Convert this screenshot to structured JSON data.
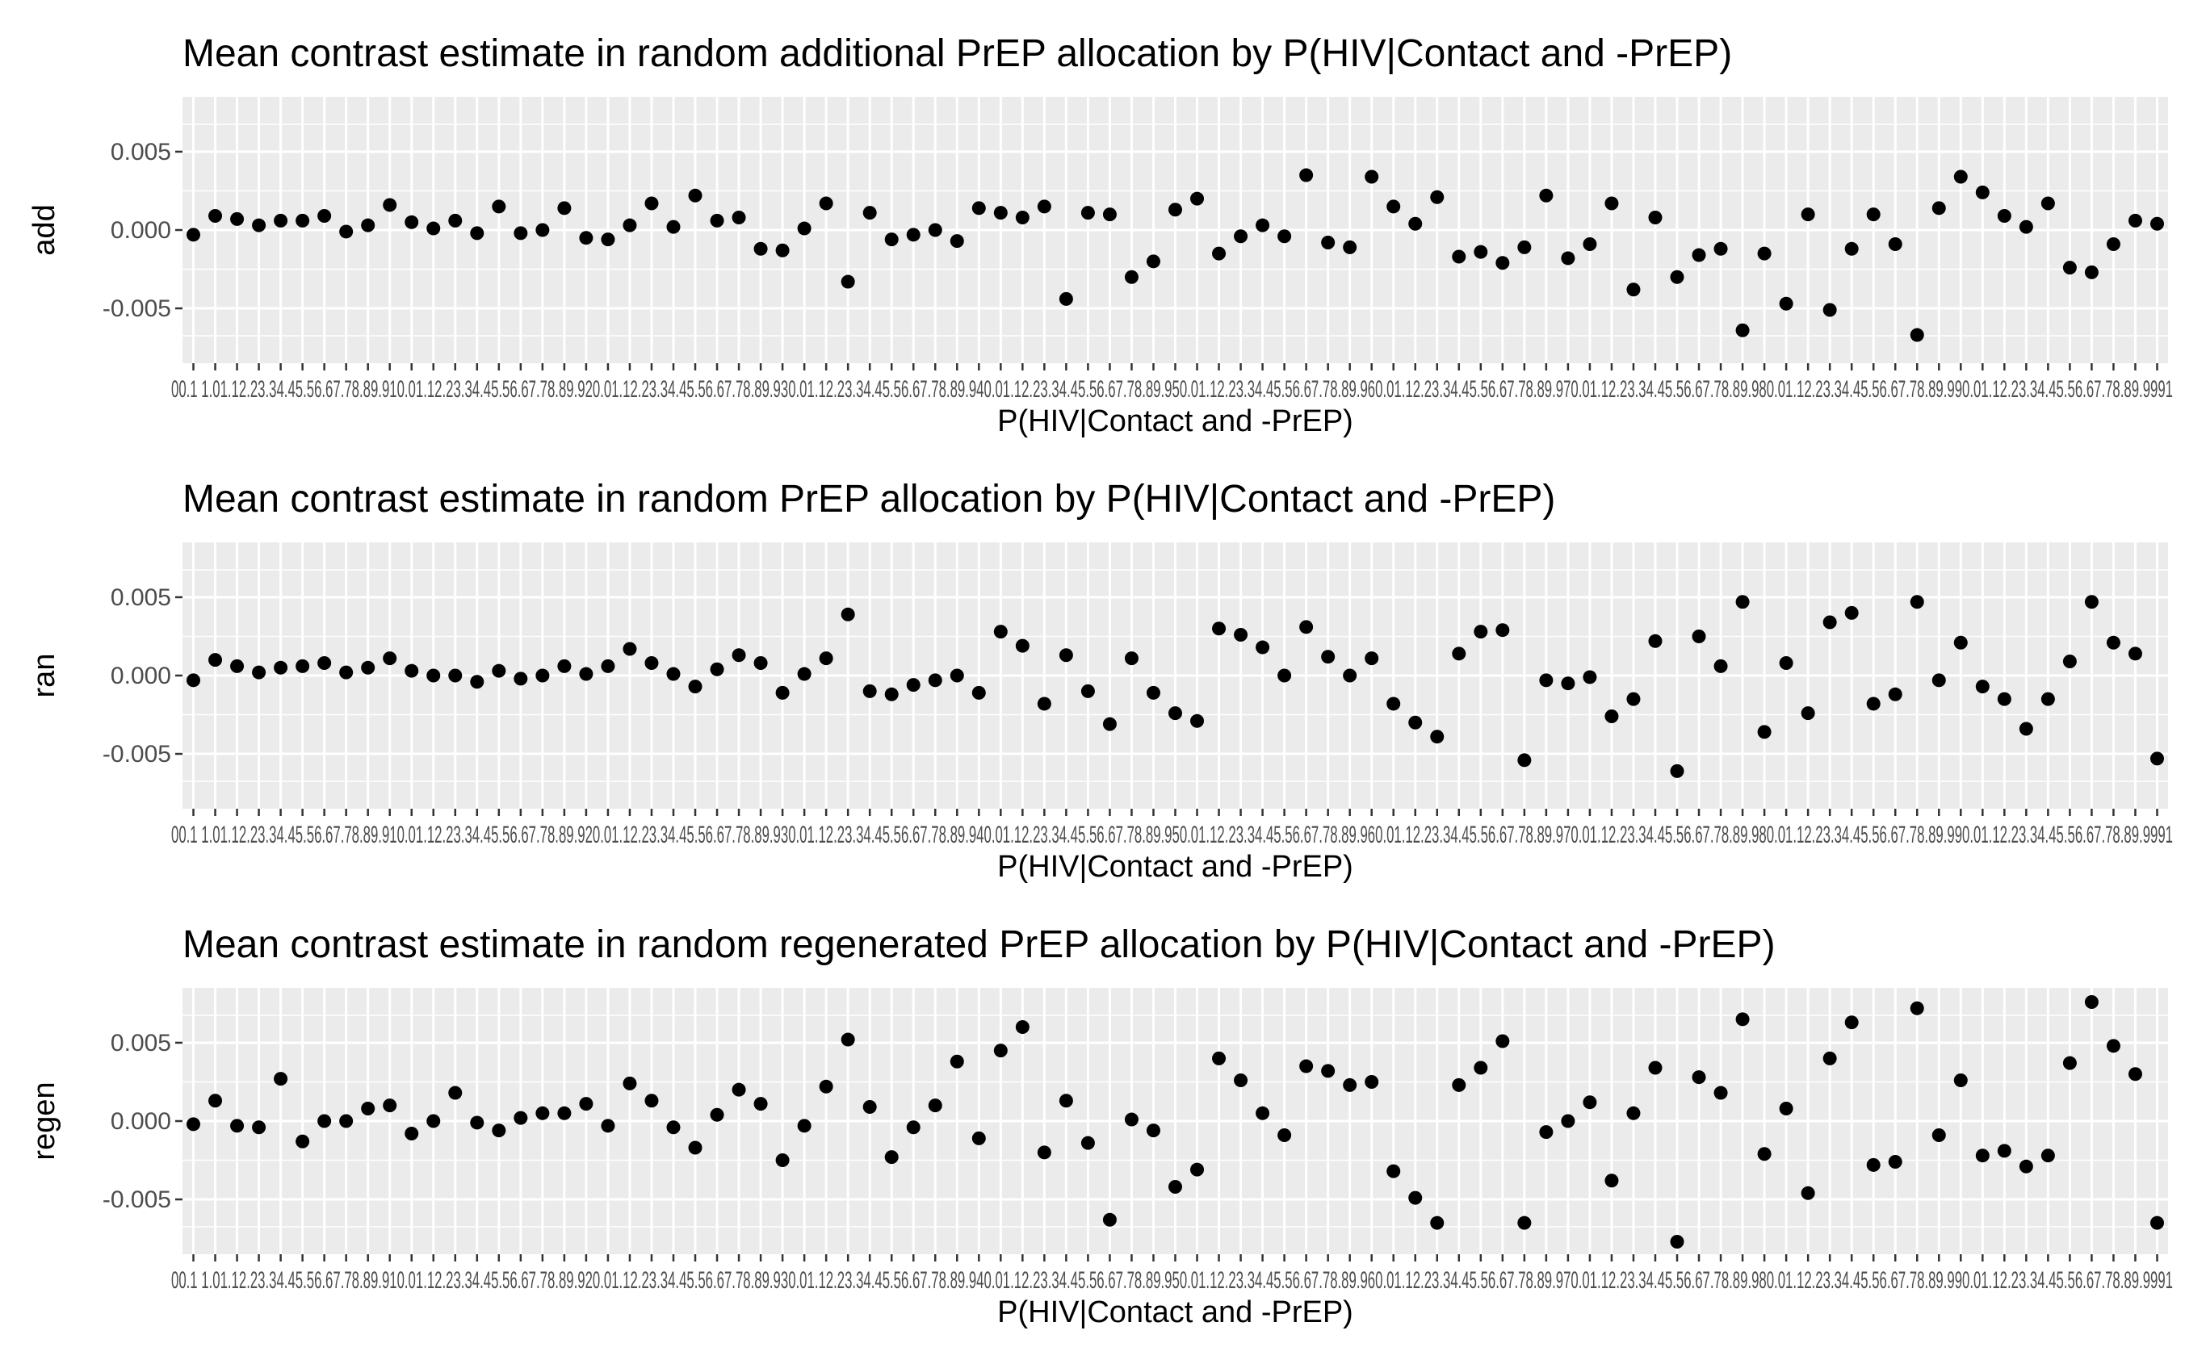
{
  "chart_data": [
    {
      "type": "scatter",
      "title": "Mean contrast estimate in random additional PrEP allocation by P(HIV|Contact and -PrEP)",
      "xlabel": "P(HIV|Contact and -PrEP)",
      "ylabel": "add",
      "ylim": [
        -0.0085,
        0.0085
      ],
      "yticks": [
        -0.005,
        0.0,
        0.005
      ],
      "ytick_labels": [
        "-0.005",
        "0.000",
        "0.005"
      ],
      "grid": true,
      "values": [
        -0.0003,
        0.0009,
        0.0007,
        0.0003,
        0.0006,
        0.0006,
        0.0009,
        -0.0001,
        0.0003,
        0.0016,
        0.0005,
        0.0001,
        0.0006,
        -0.0002,
        0.0015,
        -0.0002,
        0.0,
        0.0014,
        -0.0005,
        -0.0006,
        0.0003,
        0.0017,
        0.0002,
        0.0022,
        0.0006,
        0.0008,
        -0.0012,
        -0.0013,
        0.0001,
        0.0017,
        -0.0033,
        0.0011,
        -0.0006,
        -0.0003,
        0.0,
        -0.0007,
        0.0014,
        0.0011,
        0.0008,
        0.0015,
        -0.0044,
        0.0011,
        0.001,
        -0.003,
        -0.002,
        0.0013,
        0.002,
        -0.0015,
        -0.0004,
        0.0003,
        -0.0004,
        0.0035,
        -0.0008,
        -0.0011,
        0.0034,
        0.0015,
        0.0004,
        0.0021,
        -0.0017,
        -0.0014,
        -0.0021,
        -0.0011,
        0.0022,
        -0.0018,
        -0.0009,
        0.0017,
        -0.0038,
        0.0008,
        -0.003,
        -0.0016,
        -0.0012,
        -0.0064,
        -0.0015,
        -0.0047,
        0.001,
        -0.0051,
        -0.0012,
        0.001,
        -0.0009,
        -0.0067,
        0.0014,
        0.0034,
        0.0024,
        0.0009,
        0.0002,
        0.0017,
        -0.0024,
        -0.0027,
        -0.0009,
        0.0006,
        0.0004
      ]
    },
    {
      "type": "scatter",
      "title": "Mean contrast estimate in random PrEP allocation by P(HIV|Contact and -PrEP)",
      "xlabel": "P(HIV|Contact and -PrEP)",
      "ylabel": "ran",
      "ylim": [
        -0.0085,
        0.0085
      ],
      "yticks": [
        -0.005,
        0.0,
        0.005
      ],
      "ytick_labels": [
        "-0.005",
        "0.000",
        "0.005"
      ],
      "grid": true,
      "values": [
        -0.0003,
        0.001,
        0.0006,
        0.0002,
        0.0005,
        0.0006,
        0.0008,
        0.0002,
        0.0005,
        0.0011,
        0.0003,
        0.0,
        0.0,
        -0.0004,
        0.0003,
        -0.0002,
        0.0,
        0.0006,
        0.0001,
        0.0006,
        0.0017,
        0.0008,
        0.0001,
        -0.0007,
        0.0004,
        0.0013,
        0.0008,
        -0.0011,
        0.0001,
        0.0011,
        0.0039,
        -0.001,
        -0.0012,
        -0.0006,
        -0.0003,
        0.0,
        -0.0011,
        0.0028,
        0.0019,
        -0.0018,
        0.0013,
        -0.001,
        -0.0031,
        0.0011,
        -0.0011,
        -0.0024,
        -0.0029,
        0.003,
        0.0026,
        0.0018,
        0.0,
        0.0031,
        0.0012,
        0.0,
        0.0011,
        -0.0018,
        -0.003,
        -0.0039,
        0.0014,
        0.0028,
        0.0029,
        -0.0054,
        -0.0003,
        -0.0005,
        -0.0001,
        -0.0026,
        -0.0015,
        0.0022,
        -0.0061,
        0.0025,
        0.0006,
        0.0047,
        -0.0036,
        0.0008,
        -0.0024,
        0.0034,
        0.004,
        -0.0018,
        -0.0012,
        0.0047,
        -0.0003,
        0.0021,
        -0.0007,
        -0.0015,
        -0.0034,
        -0.0015,
        0.0009,
        0.0047,
        0.0021,
        0.0014,
        -0.0053
      ]
    },
    {
      "type": "scatter",
      "title": "Mean contrast estimate in random regenerated PrEP allocation by P(HIV|Contact and -PrEP)",
      "xlabel": "P(HIV|Contact and -PrEP)",
      "ylabel": "regen",
      "ylim": [
        -0.0085,
        0.0085
      ],
      "yticks": [
        -0.005,
        0.0,
        0.005
      ],
      "ytick_labels": [
        "-0.005",
        "0.000",
        "0.005"
      ],
      "grid": true,
      "values": [
        -0.0002,
        0.0013,
        -0.0003,
        -0.0004,
        0.0027,
        -0.0013,
        0.0,
        0.0,
        0.0008,
        0.001,
        -0.0008,
        0.0,
        0.0018,
        -0.0001,
        -0.0006,
        0.0002,
        0.0005,
        0.0005,
        0.0011,
        -0.0003,
        0.0024,
        0.0013,
        -0.0004,
        -0.0017,
        0.0004,
        0.002,
        0.0011,
        -0.0025,
        -0.0003,
        0.0022,
        0.0052,
        0.0009,
        -0.0023,
        -0.0004,
        0.001,
        0.0038,
        -0.0011,
        0.0045,
        0.006,
        -0.002,
        0.0013,
        -0.0014,
        -0.0063,
        0.0001,
        -0.0006,
        -0.0042,
        -0.0031,
        0.004,
        0.0026,
        0.0005,
        -0.0009,
        0.0035,
        0.0032,
        0.0023,
        0.0025,
        -0.0032,
        -0.0049,
        -0.0065,
        0.0023,
        0.0034,
        0.0051,
        -0.0065,
        -0.0007,
        0.0,
        0.0012,
        -0.0038,
        0.0005,
        0.0034,
        -0.0077,
        0.0028,
        0.0018,
        0.0065,
        -0.0021,
        0.0008,
        -0.0046,
        0.004,
        0.0063,
        -0.0028,
        -0.0026,
        0.0072,
        -0.0009,
        0.0026,
        -0.0022,
        -0.0019,
        -0.0029,
        -0.0022,
        0.0037,
        0.0076,
        0.0048,
        0.003,
        -0.0065
      ]
    }
  ],
  "x_tick_labels": "00.1 1.01.12.23.34.45.56.67.78.89.910.01.12.23.34.45.56.67.78.89.920.01.12.23.34.45.56.67.78.89.930.01.12.23.34.45.56.67.78.89.940.01.12.23.34.45.56.67.78.89.950.01.12.23.34.45.56.67.78.89.960.01.12.23.34.45.56.67.78.89.970.01.12.23.34.45.56.67.78.89.980.01.12.23.34.45.56.67.78.89.990.01.12.23.34.45.56.67.78.89.9991"
}
